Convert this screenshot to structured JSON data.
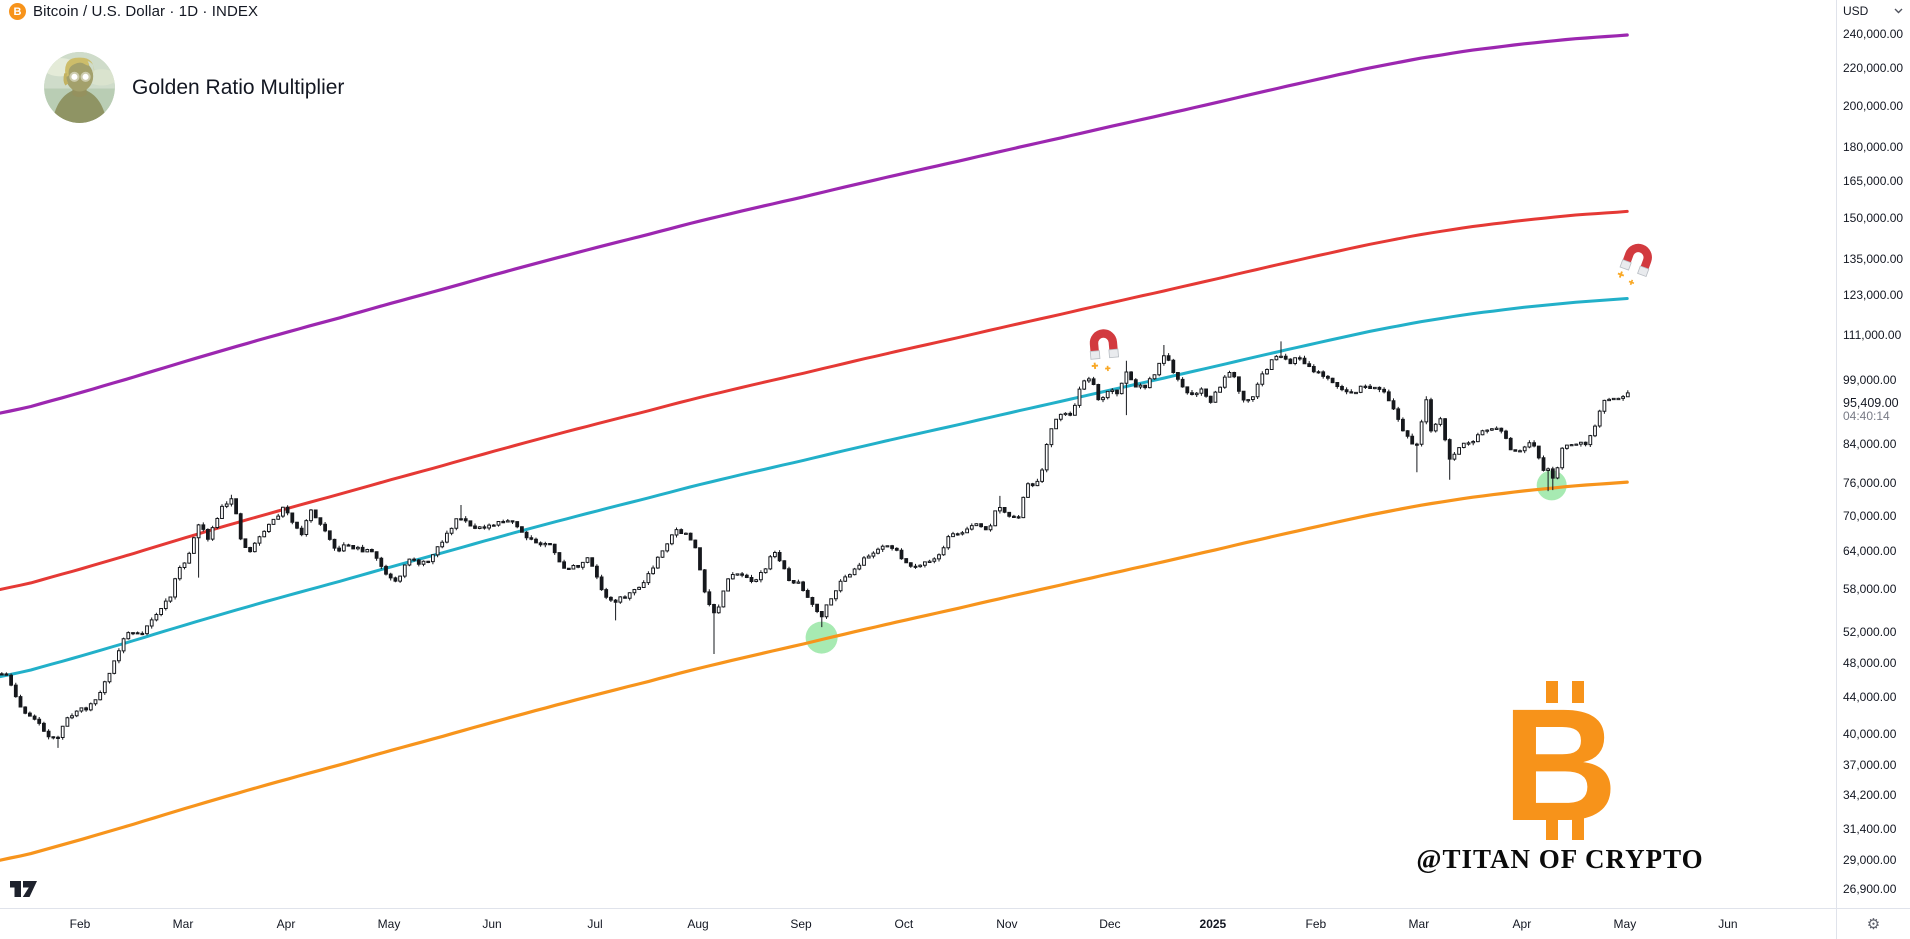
{
  "header": {
    "symbol_title": "Bitcoin / U.S. Dollar · 1D · INDEX",
    "indicator_name": "Golden Ratio Multiplier"
  },
  "watermark": {
    "handle": "@TITAN OF CRYPTO",
    "logo": "bitcoin-logo"
  },
  "icons": {
    "gear": "⚙",
    "bitcoin_letter": "B"
  },
  "price_axis": {
    "currency": "USD",
    "last_price": {
      "label": "95,409.00",
      "countdown": "04:40:14",
      "value": 95409
    }
  },
  "chart_data": {
    "type": "candlestick",
    "title": "Bitcoin / U.S. Dollar, 1D, INDEX with Golden Ratio Multiplier",
    "grid": "off",
    "y_axis": {
      "scale": "log",
      "side": "right",
      "top_price": 262000,
      "bottom_price": 25620,
      "ticks": [
        {
          "label": "240,000.00",
          "value": 240000
        },
        {
          "label": "220,000.00",
          "value": 220000
        },
        {
          "label": "200,000.00",
          "value": 200000
        },
        {
          "label": "180,000.00",
          "value": 180000
        },
        {
          "label": "165,000.00",
          "value": 165000
        },
        {
          "label": "150,000.00",
          "value": 150000
        },
        {
          "label": "135,000.00",
          "value": 135000
        },
        {
          "label": "123,000.00",
          "value": 123000
        },
        {
          "label": "111,000.00",
          "value": 111000
        },
        {
          "label": "99,000.00",
          "value": 99000
        },
        {
          "label": "84,000.00",
          "value": 84000
        },
        {
          "label": "76,000.00",
          "value": 76000
        },
        {
          "label": "70,000.00",
          "value": 70000
        },
        {
          "label": "64,000.00",
          "value": 64000
        },
        {
          "label": "58,000.00",
          "value": 58000
        },
        {
          "label": "52,000.00",
          "value": 52000
        },
        {
          "label": "48,000.00",
          "value": 48000
        },
        {
          "label": "44,000.00",
          "value": 44000
        },
        {
          "label": "40,000.00",
          "value": 40000
        },
        {
          "label": "37,000.00",
          "value": 37000
        },
        {
          "label": "34,200.00",
          "value": 34200
        },
        {
          "label": "31,400.00",
          "value": 31400
        },
        {
          "label": "29,000.00",
          "value": 29000
        },
        {
          "label": "26,900.00",
          "value": 26900
        }
      ]
    },
    "x_axis": {
      "t_left": 0.223,
      "t_right": 18.05,
      "unit": "months-since-2024-01-01",
      "months": [
        {
          "label": "Feb",
          "t": 1
        },
        {
          "label": "Mar",
          "t": 2
        },
        {
          "label": "Apr",
          "t": 3
        },
        {
          "label": "May",
          "t": 4
        },
        {
          "label": "Jun",
          "t": 5
        },
        {
          "label": "Jul",
          "t": 6
        },
        {
          "label": "Aug",
          "t": 7
        },
        {
          "label": "Sep",
          "t": 8
        },
        {
          "label": "Oct",
          "t": 9
        },
        {
          "label": "Nov",
          "t": 10
        },
        {
          "label": "Dec",
          "t": 11
        },
        {
          "label": "2025",
          "t": 12,
          "bold": true
        },
        {
          "label": "Feb",
          "t": 13
        },
        {
          "label": "Mar",
          "t": 14
        },
        {
          "label": "Apr",
          "t": 15
        },
        {
          "label": "May",
          "t": 16
        },
        {
          "label": "Jun",
          "t": 17
        }
      ]
    },
    "indicator": {
      "name": "Golden Ratio Multiplier",
      "base": "350-day moving average",
      "ma350_usd_k": [
        [
          0,
          28.6
        ],
        [
          0.5,
          29.4
        ],
        [
          1,
          30.5
        ],
        [
          1.5,
          31.7
        ],
        [
          2,
          33.0
        ],
        [
          2.5,
          34.3
        ],
        [
          3,
          35.6
        ],
        [
          3.5,
          36.9
        ],
        [
          4,
          38.3
        ],
        [
          4.5,
          39.7
        ],
        [
          5,
          41.2
        ],
        [
          5.5,
          42.7
        ],
        [
          6,
          44.2
        ],
        [
          6.5,
          45.7
        ],
        [
          7,
          47.3
        ],
        [
          7.5,
          48.8
        ],
        [
          8,
          50.3
        ],
        [
          8.5,
          51.9
        ],
        [
          9,
          53.5
        ],
        [
          9.5,
          55.1
        ],
        [
          10,
          56.8
        ],
        [
          10.5,
          58.5
        ],
        [
          11,
          60.3
        ],
        [
          11.5,
          62.1
        ],
        [
          12,
          64.0
        ],
        [
          12.5,
          66.0
        ],
        [
          13,
          68.0
        ],
        [
          13.5,
          70.0
        ],
        [
          14,
          71.8
        ],
        [
          14.5,
          73.3
        ],
        [
          15,
          74.5
        ],
        [
          15.5,
          75.5
        ],
        [
          16,
          76.2
        ],
        [
          16.1,
          76.4
        ]
      ],
      "lines": [
        {
          "name": "350dma",
          "multiplier": 1,
          "color": "#f7941c",
          "width": 3.2
        },
        {
          "name": "350dma-x1.6",
          "multiplier": 1.6,
          "color": "#22b0c9",
          "width": 3
        },
        {
          "name": "350dma-x2",
          "multiplier": 2,
          "color": "#e53935",
          "width": 3
        },
        {
          "name": "350dma-x3.14",
          "multiplier": 3.1416,
          "color": "#9c27b0",
          "width": 3.2
        }
      ]
    },
    "price_path_usd_k": [
      [
        0.22,
        46.8
      ],
      [
        0.3,
        46.2
      ],
      [
        0.42,
        42.8
      ],
      [
        0.55,
        41.6
      ],
      [
        0.68,
        40.0
      ],
      [
        0.78,
        39.6
      ],
      [
        0.9,
        42.0
      ],
      [
        1.0,
        42.6
      ],
      [
        1.1,
        42.9
      ],
      [
        1.2,
        44.6
      ],
      [
        1.32,
        47.8
      ],
      [
        1.45,
        51.8
      ],
      [
        1.6,
        51.9
      ],
      [
        1.75,
        54.4
      ],
      [
        1.88,
        57.1
      ],
      [
        1.97,
        61.4
      ],
      [
        2.05,
        63.0
      ],
      [
        2.15,
        68.3
      ],
      [
        2.25,
        66.1
      ],
      [
        2.38,
        72.0
      ],
      [
        2.48,
        73.0
      ],
      [
        2.57,
        65.0
      ],
      [
        2.65,
        63.8
      ],
      [
        2.78,
        67.2
      ],
      [
        2.9,
        69.6
      ],
      [
        2.97,
        71.2
      ],
      [
        3.05,
        69.4
      ],
      [
        3.15,
        66.9
      ],
      [
        3.25,
        71.1
      ],
      [
        3.35,
        67.8
      ],
      [
        3.48,
        63.9
      ],
      [
        3.6,
        64.9
      ],
      [
        3.72,
        64.0
      ],
      [
        3.85,
        63.8
      ],
      [
        3.95,
        60.6
      ],
      [
        4.08,
        59.1
      ],
      [
        4.18,
        63.1
      ],
      [
        4.3,
        61.5
      ],
      [
        4.42,
        63.0
      ],
      [
        4.55,
        66.3
      ],
      [
        4.68,
        70.0
      ],
      [
        4.8,
        68.3
      ],
      [
        4.93,
        67.6
      ],
      [
        5.05,
        68.5
      ],
      [
        5.18,
        69.5
      ],
      [
        5.3,
        66.9
      ],
      [
        5.45,
        65.1
      ],
      [
        5.58,
        64.9
      ],
      [
        5.7,
        60.9
      ],
      [
        5.82,
        61.5
      ],
      [
        5.95,
        62.7
      ],
      [
        6.08,
        57.3
      ],
      [
        6.18,
        55.9
      ],
      [
        6.3,
        57.0
      ],
      [
        6.42,
        58.1
      ],
      [
        6.55,
        61.0
      ],
      [
        6.65,
        64.1
      ],
      [
        6.78,
        67.5
      ],
      [
        6.88,
        66.8
      ],
      [
        6.97,
        64.6
      ],
      [
        7.08,
        56.8
      ],
      [
        7.17,
        54.0
      ],
      [
        7.28,
        59.0
      ],
      [
        7.4,
        60.9
      ],
      [
        7.52,
        58.8
      ],
      [
        7.65,
        61.2
      ],
      [
        7.75,
        64.0
      ],
      [
        7.88,
        59.2
      ],
      [
        7.97,
        58.9
      ],
      [
        8.08,
        56.5
      ],
      [
        8.2,
        54.1
      ],
      [
        8.32,
        57.7
      ],
      [
        8.45,
        60.1
      ],
      [
        8.58,
        62.1
      ],
      [
        8.7,
        63.6
      ],
      [
        8.82,
        65.3
      ],
      [
        8.95,
        63.4
      ],
      [
        9.08,
        61.2
      ],
      [
        9.2,
        62.3
      ],
      [
        9.32,
        62.7
      ],
      [
        9.45,
        66.7
      ],
      [
        9.58,
        67.1
      ],
      [
        9.7,
        68.5
      ],
      [
        9.82,
        67.3
      ],
      [
        9.92,
        72.2
      ],
      [
        9.98,
        70.3
      ],
      [
        10.1,
        69.1
      ],
      [
        10.2,
        75.5
      ],
      [
        10.32,
        76.3
      ],
      [
        10.42,
        87.1
      ],
      [
        10.52,
        91.1
      ],
      [
        10.62,
        90.3
      ],
      [
        10.72,
        97.8
      ],
      [
        10.82,
        99.1
      ],
      [
        10.9,
        93.0
      ],
      [
        10.98,
        96.6
      ],
      [
        11.08,
        95.9
      ],
      [
        11.16,
        100.8
      ],
      [
        11.26,
        97.5
      ],
      [
        11.35,
        97.2
      ],
      [
        11.45,
        101.3
      ],
      [
        11.53,
        106.2
      ],
      [
        11.62,
        100.2
      ],
      [
        11.7,
        97.3
      ],
      [
        11.8,
        95.2
      ],
      [
        11.88,
        97.0
      ],
      [
        11.97,
        93.5
      ],
      [
        12.08,
        98.2
      ],
      [
        12.18,
        102.2
      ],
      [
        12.28,
        94.4
      ],
      [
        12.38,
        94.7
      ],
      [
        12.48,
        100.3
      ],
      [
        12.58,
        104.2
      ],
      [
        12.67,
        106.0
      ],
      [
        12.75,
        103.8
      ],
      [
        12.85,
        104.8
      ],
      [
        12.95,
        102.2
      ],
      [
        13.05,
        100.7
      ],
      [
        13.15,
        98.0
      ],
      [
        13.25,
        96.5
      ],
      [
        13.35,
        95.8
      ],
      [
        13.45,
        97.4
      ],
      [
        13.55,
        96.8
      ],
      [
        13.65,
        96.2
      ],
      [
        13.75,
        91.6
      ],
      [
        13.85,
        86.9
      ],
      [
        13.93,
        84.3
      ],
      [
        13.99,
        84.4
      ],
      [
        14.07,
        94.0
      ],
      [
        14.12,
        86.1
      ],
      [
        14.2,
        90.5
      ],
      [
        14.3,
        80.9
      ],
      [
        14.4,
        83.6
      ],
      [
        14.5,
        84.1
      ],
      [
        14.6,
        86.7
      ],
      [
        14.7,
        87.4
      ],
      [
        14.8,
        86.9
      ],
      [
        14.9,
        82.6
      ],
      [
        14.97,
        82.4
      ],
      [
        15.07,
        83.9
      ],
      [
        15.14,
        83.2
      ],
      [
        15.2,
        78.4
      ],
      [
        15.27,
        79.2
      ],
      [
        15.32,
        76.4
      ],
      [
        15.37,
        82.5
      ],
      [
        15.45,
        83.7
      ],
      [
        15.55,
        84.6
      ],
      [
        15.62,
        84.4
      ],
      [
        15.7,
        87.5
      ],
      [
        15.78,
        93.4
      ],
      [
        15.85,
        93.8
      ],
      [
        15.92,
        94.0
      ],
      [
        15.98,
        94.2
      ],
      [
        16.02,
        96.5
      ],
      [
        16.05,
        95.4
      ]
    ],
    "key_wicks": [
      {
        "t": 0.78,
        "lo": 38.6
      },
      {
        "t": 2.15,
        "lo": 59.7
      },
      {
        "t": 2.48,
        "hi": 73.8
      },
      {
        "t": 4.68,
        "hi": 71.9
      },
      {
        "t": 6.18,
        "lo": 53.5
      },
      {
        "t": 7.17,
        "lo": 49.1
      },
      {
        "t": 8.2,
        "lo": 52.6
      },
      {
        "t": 9.92,
        "hi": 73.6
      },
      {
        "t": 10.82,
        "hi": 99.8
      },
      {
        "t": 11.16,
        "lo": 90.5,
        "hi": 104.0
      },
      {
        "t": 11.53,
        "hi": 108.3
      },
      {
        "t": 12.67,
        "hi": 109.3
      },
      {
        "t": 13.99,
        "lo": 78.2
      },
      {
        "t": 14.07,
        "hi": 95.0
      },
      {
        "t": 14.3,
        "lo": 76.7
      },
      {
        "t": 15.27,
        "lo": 74.5
      },
      {
        "t": 15.32,
        "lo": 74.7
      }
    ],
    "candles": {
      "t_start": 0.24,
      "t_end": 16.05,
      "dt": 0.0455,
      "up_color": "#ffffff",
      "down_color": "#16181d",
      "border_color": "#16181d",
      "wick_color": "#16181d"
    },
    "markers": {
      "support_touches": [
        {
          "t": 8.2,
          "price_usd_k": 51.2,
          "color": "#5ed973",
          "radius": 16
        },
        {
          "t": 15.29,
          "price_usd_k": 75.6,
          "color": "#5ed973",
          "radius": 15
        }
      ],
      "magnets": [
        {
          "t": 10.94,
          "price_usd_k": 108.0,
          "rotate": -5
        },
        {
          "t": 16.12,
          "price_usd_k": 134.5,
          "rotate": 20
        }
      ]
    },
    "last_price_usd": 95409
  }
}
